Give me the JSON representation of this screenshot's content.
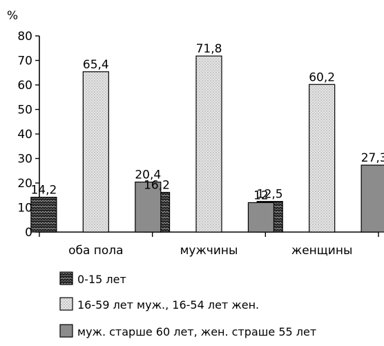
{
  "chart_data": {
    "type": "bar",
    "ylabel": "%",
    "ylim": [
      0,
      80
    ],
    "yticks": [
      0,
      10,
      20,
      30,
      40,
      50,
      60,
      70,
      80
    ],
    "categories": [
      "оба пола",
      "мужчины",
      "женщины"
    ],
    "series": [
      {
        "name": "0-15 лет",
        "values": [
          14.2,
          16.2,
          12.5
        ],
        "labels": [
          "14,2",
          "16,2",
          "12,5"
        ],
        "pattern": "dark-zigzag"
      },
      {
        "name": "16-59 лет муж., 16-54 лет жен.",
        "values": [
          65.4,
          71.8,
          60.2
        ],
        "labels": [
          "65,4",
          "71,8",
          "60,2"
        ],
        "pattern": "light-dots"
      },
      {
        "name": "муж. старше 60 лет, жен. страше 55 лет",
        "values": [
          20.4,
          12,
          27.3
        ],
        "labels": [
          "20,4",
          "12",
          "27,3"
        ],
        "pattern": "solid-gray"
      }
    ],
    "grid": false,
    "legend_position": "bottom"
  }
}
